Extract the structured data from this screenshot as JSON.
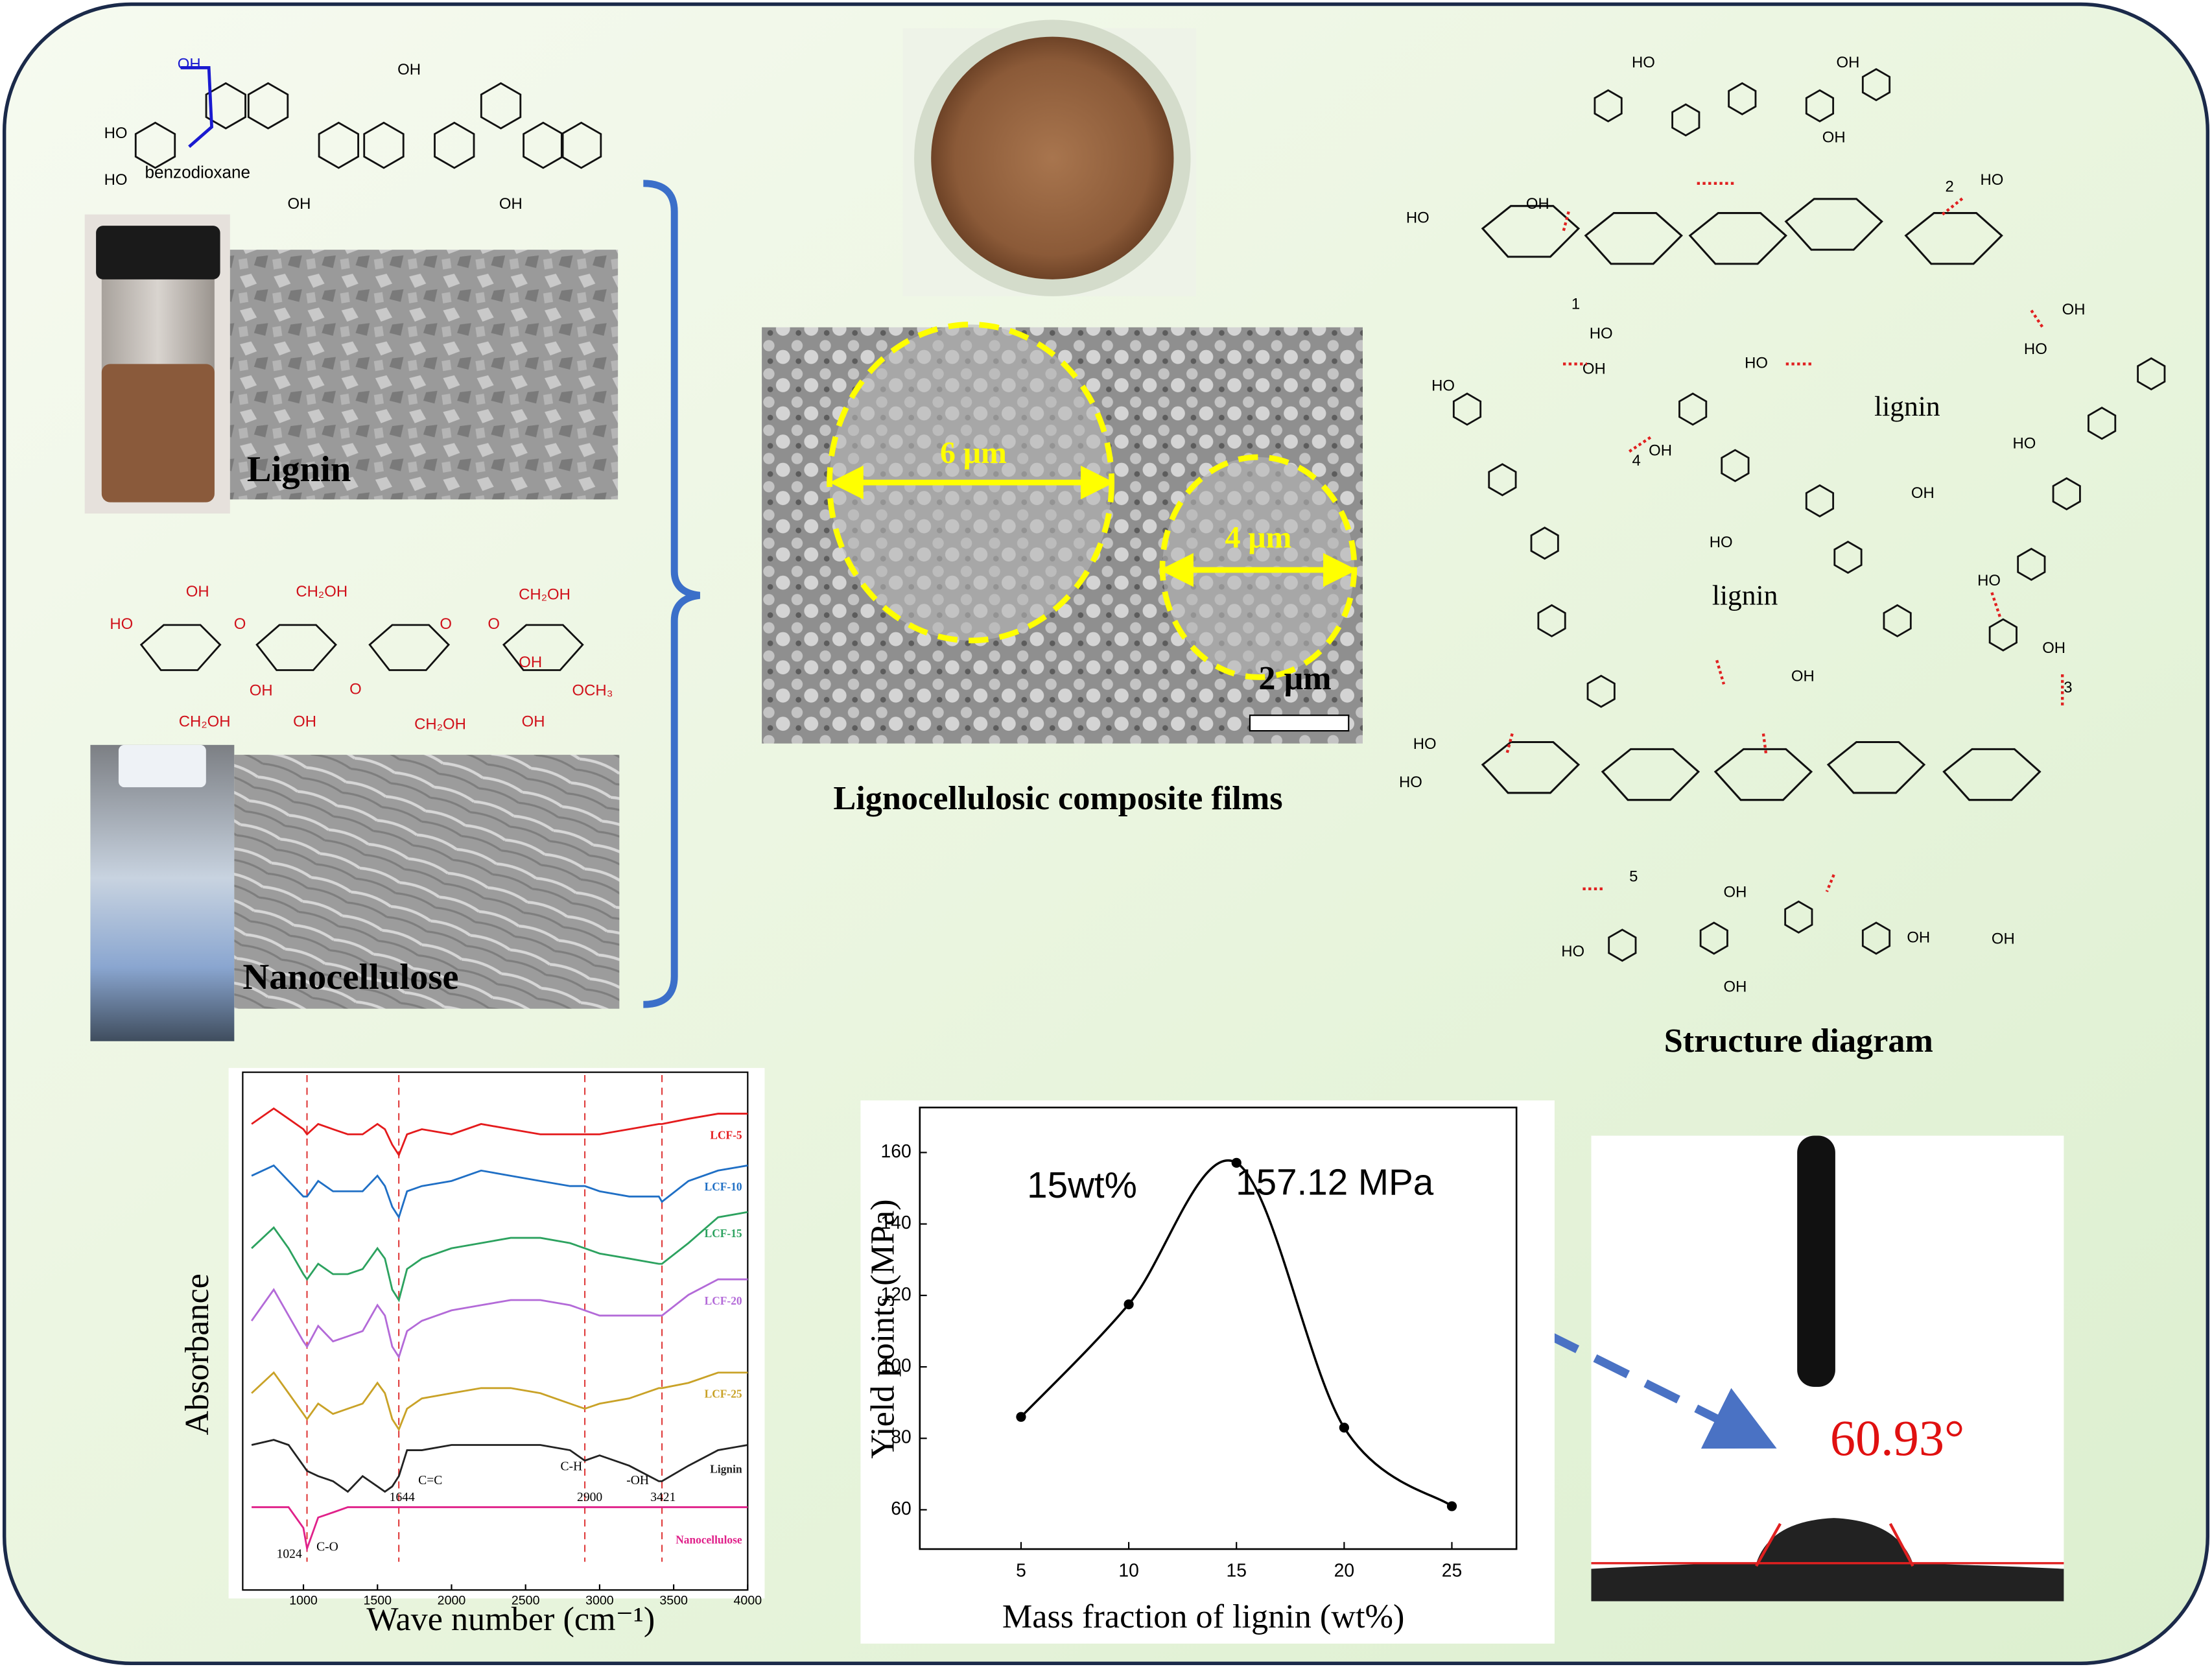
{
  "lignin_formula": [
    "OH",
    "HO",
    "HO",
    "benzodioxane",
    "OH",
    "OH",
    "OH"
  ],
  "lignin_photo_label": "Lignin",
  "cellulose_formula": [
    "OH",
    "CH₂OH",
    "HO",
    "O",
    "O",
    "O",
    "O",
    "CH₂OH",
    "OH",
    "OCH₃",
    "CH₂OH",
    "OH",
    "CH₂OH",
    "OH",
    "OH"
  ],
  "nanocellulose_photo_label": "Nanocellulose",
  "particle_sizes": [
    "6 μm",
    "4 μm"
  ],
  "sem_scale": "2 μm",
  "film_caption": "Lignocellulosic composite films",
  "structure_labels": [
    "HO",
    "OH",
    "OH",
    "HO",
    "OH",
    "2",
    "HO",
    "HO",
    "1",
    "HO",
    "OH",
    "OH",
    "HO",
    "HO",
    "lignin",
    "4",
    "OH",
    "HO",
    "OH",
    "HO",
    "lignin",
    "HO",
    "OH",
    "3",
    "HO",
    "OH",
    "5",
    "OH",
    "HO",
    "OH",
    "OH",
    "HO",
    "OH"
  ],
  "structure_caption": "Structure diagram",
  "contact_angle": "60.93°",
  "chart_data": [
    {
      "type": "line",
      "xlabel": "Wave number (cm⁻¹)",
      "ylabel": "Absorbance",
      "x": [
        650,
        800,
        900,
        1000,
        1024,
        1100,
        1200,
        1300,
        1400,
        1500,
        1550,
        1600,
        1644,
        1700,
        1800,
        2000,
        2200,
        2400,
        2600,
        2800,
        2900,
        3000,
        3200,
        3400,
        3421,
        3600,
        3800,
        4000
      ],
      "xlim": [
        590,
        4000
      ],
      "xticks": [
        1000,
        1500,
        2000,
        2500,
        3000,
        3500,
        4000
      ],
      "ylim": [
        0,
        100
      ],
      "peak_positions": [
        1024,
        1644,
        2900,
        3421
      ],
      "peak_labels": [
        "C-O",
        "C=C",
        "C-H",
        "-OH"
      ],
      "series": [
        {
          "name": "LCF-5",
          "color": "#e41a1c",
          "values": [
            90,
            93,
            91,
            89,
            88,
            90,
            89,
            88,
            88,
            90,
            89,
            86,
            84,
            88,
            89,
            88,
            90,
            89,
            88,
            88,
            88,
            88,
            89,
            90,
            90,
            91,
            92,
            92
          ]
        },
        {
          "name": "LCF-10",
          "color": "#1f6fc5",
          "values": [
            80,
            82,
            79,
            76,
            76,
            79,
            77,
            77,
            77,
            80,
            78,
            74,
            72,
            77,
            78,
            79,
            81,
            80,
            79,
            78,
            78,
            77,
            76,
            76,
            75,
            79,
            81,
            82
          ]
        },
        {
          "name": "LCF-15",
          "color": "#2ca25f",
          "values": [
            66,
            70,
            66,
            61,
            60,
            63,
            61,
            61,
            62,
            66,
            64,
            58,
            56,
            62,
            64,
            66,
            67,
            68,
            68,
            67,
            66,
            65,
            64,
            63,
            63,
            67,
            72,
            73
          ]
        },
        {
          "name": "LCF-20",
          "color": "#b36ad8",
          "values": [
            52,
            58,
            53,
            48,
            47,
            51,
            48,
            49,
            50,
            55,
            53,
            47,
            45,
            50,
            52,
            54,
            55,
            56,
            56,
            55,
            54,
            53,
            53,
            53,
            53,
            57,
            60,
            60
          ]
        },
        {
          "name": "LCF-25",
          "color": "#c9a227",
          "values": [
            38,
            42,
            38,
            34,
            33,
            36,
            34,
            35,
            36,
            40,
            38,
            33,
            31,
            35,
            37,
            38,
            39,
            39,
            38,
            36,
            35,
            36,
            37,
            39,
            39,
            40,
            42,
            42
          ]
        },
        {
          "name": "Lignin",
          "color": "#222222",
          "values": [
            28,
            29,
            28,
            24,
            23,
            22,
            21,
            19,
            22,
            20,
            19,
            20,
            22,
            27,
            27,
            28,
            28,
            28,
            28,
            27,
            25,
            26,
            24,
            21,
            21,
            24,
            27,
            28
          ]
        },
        {
          "name": "Nanocellulose",
          "color": "#e0218a",
          "values": [
            16,
            16,
            16,
            12,
            8,
            14,
            15,
            16,
            16,
            16,
            16,
            16,
            16,
            16,
            16,
            16,
            16,
            16,
            16,
            16,
            16,
            16,
            16,
            16,
            16,
            16,
            16,
            16
          ]
        }
      ]
    },
    {
      "type": "line",
      "xlabel": "Mass fraction of lignin (wt%)",
      "ylabel": "Yield points (MPa)",
      "x": [
        5,
        10,
        15,
        20,
        25
      ],
      "values": [
        86,
        117.5,
        157.12,
        83,
        61
      ],
      "color": "#000000",
      "xlim": [
        0.3,
        28
      ],
      "ylim": [
        49,
        172.6
      ],
      "xticks": [
        5,
        10,
        15,
        20,
        25
      ],
      "yticks": [
        60,
        80,
        100,
        120,
        140,
        160
      ],
      "annotations": [
        "15wt%",
        "157.12 MPa"
      ]
    }
  ]
}
